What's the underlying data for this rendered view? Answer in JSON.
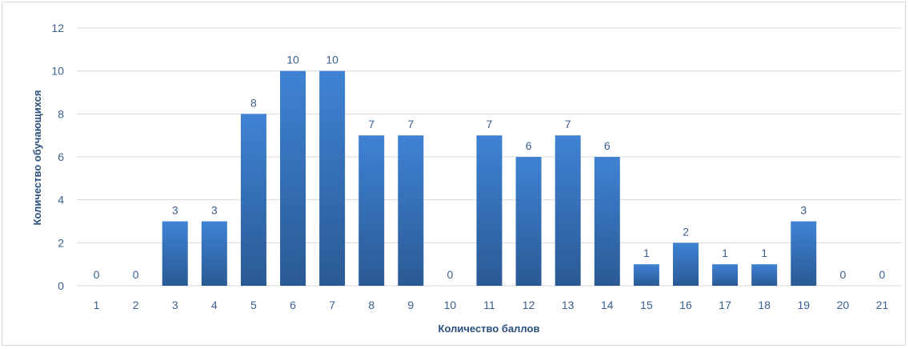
{
  "chart_data": {
    "type": "bar",
    "title": "",
    "xlabel": "Количество баллов",
    "ylabel": "Количество обучающихся",
    "categories": [
      "1",
      "2",
      "3",
      "4",
      "5",
      "6",
      "7",
      "8",
      "9",
      "10",
      "11",
      "12",
      "13",
      "14",
      "15",
      "16",
      "17",
      "18",
      "19",
      "20",
      "21"
    ],
    "values": [
      0,
      0,
      3,
      3,
      8,
      10,
      10,
      7,
      7,
      0,
      7,
      6,
      7,
      6,
      1,
      2,
      1,
      1,
      3,
      0,
      0
    ],
    "ylim": [
      0,
      12
    ],
    "yticks": [
      0,
      2,
      4,
      6,
      8,
      10,
      12
    ],
    "grid": true,
    "data_labels": true,
    "bar_color_top": "#3f82d4",
    "bar_color_bottom": "#2a5a94",
    "gridline_color": "#d9d9d9"
  }
}
